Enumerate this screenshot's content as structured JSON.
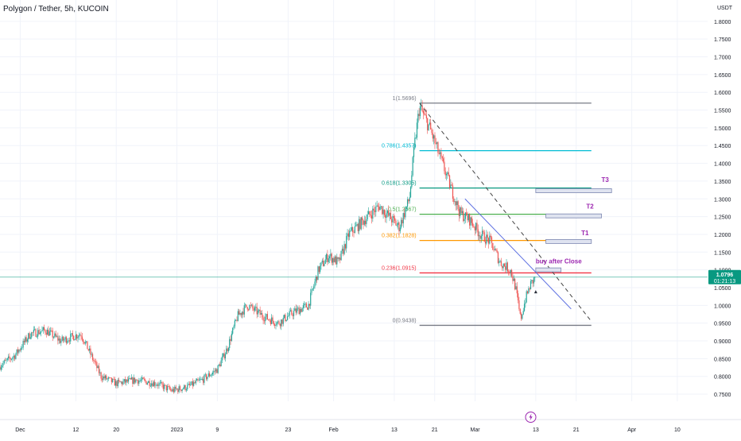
{
  "header": {
    "symbol_title": "Polygon / Tether, 5h, KUCOIN"
  },
  "price_axis": {
    "currency": "USDT",
    "ticks": [
      "0.7500",
      "0.8000",
      "0.8500",
      "0.9000",
      "0.9500",
      "1.0000",
      "1.0500",
      "1.1000",
      "1.1500",
      "1.2000",
      "1.2500",
      "1.3000",
      "1.3500",
      "1.4000",
      "1.4500",
      "1.5000",
      "1.5500",
      "1.6000",
      "1.6500",
      "1.7000",
      "1.7500",
      "1.8000"
    ],
    "current_price_label": "1.0796",
    "countdown_label": "01:21:13",
    "current_price_color": "#089981"
  },
  "time_axis": {
    "labels": [
      {
        "label": "Dec",
        "x": "2022-12-01"
      },
      {
        "label": "12",
        "x": "2022-12-12"
      },
      {
        "label": "20",
        "x": "2022-12-20"
      },
      {
        "label": "2023",
        "x": "2023-01-01"
      },
      {
        "label": "9",
        "x": "2023-01-09"
      },
      {
        "label": "23",
        "x": "2023-01-23"
      },
      {
        "label": "Feb",
        "x": "2023-02-01"
      },
      {
        "label": "13",
        "x": "2023-02-13"
      },
      {
        "label": "21",
        "x": "2023-02-21"
      },
      {
        "label": "Mar",
        "x": "2023-03-01"
      },
      {
        "label": "13",
        "x": "2023-03-13"
      },
      {
        "label": "21",
        "x": "2023-03-21"
      },
      {
        "label": "Apr",
        "x": "2023-04-01"
      },
      {
        "label": "10",
        "x": "2023-04-10"
      }
    ],
    "event_icon": "lightning-icon",
    "event_date": "2023-03-12"
  },
  "chart_data": {
    "type": "candlestick",
    "interval": "5h",
    "ylim": [
      0.73,
      1.86
    ],
    "xlim": [
      "2022-11-27",
      "2023-04-16"
    ],
    "grid": true,
    "up_color": "#26a69a",
    "down_color": "#ef5350",
    "price_path": [
      {
        "x": "2022-11-27",
        "y": 0.83
      },
      {
        "x": "2022-11-30",
        "y": 0.86
      },
      {
        "x": "2022-12-03",
        "y": 0.92
      },
      {
        "x": "2022-12-06",
        "y": 0.93
      },
      {
        "x": "2022-12-09",
        "y": 0.9
      },
      {
        "x": "2022-12-13",
        "y": 0.92
      },
      {
        "x": "2022-12-15",
        "y": 0.86
      },
      {
        "x": "2022-12-17",
        "y": 0.8
      },
      {
        "x": "2022-12-20",
        "y": 0.78
      },
      {
        "x": "2022-12-24",
        "y": 0.79
      },
      {
        "x": "2022-12-28",
        "y": 0.78
      },
      {
        "x": "2022-12-31",
        "y": 0.76
      },
      {
        "x": "2023-01-03",
        "y": 0.77
      },
      {
        "x": "2023-01-06",
        "y": 0.79
      },
      {
        "x": "2023-01-09",
        "y": 0.82
      },
      {
        "x": "2023-01-11",
        "y": 0.88
      },
      {
        "x": "2023-01-13",
        "y": 0.97
      },
      {
        "x": "2023-01-15",
        "y": 1.0
      },
      {
        "x": "2023-01-18",
        "y": 0.97
      },
      {
        "x": "2023-01-21",
        "y": 0.95
      },
      {
        "x": "2023-01-24",
        "y": 0.98
      },
      {
        "x": "2023-01-27",
        "y": 1.0
      },
      {
        "x": "2023-01-29",
        "y": 1.1
      },
      {
        "x": "2023-01-31",
        "y": 1.14
      },
      {
        "x": "2023-02-02",
        "y": 1.12
      },
      {
        "x": "2023-02-04",
        "y": 1.2
      },
      {
        "x": "2023-02-07",
        "y": 1.24
      },
      {
        "x": "2023-02-10",
        "y": 1.28
      },
      {
        "x": "2023-02-12",
        "y": 1.25
      },
      {
        "x": "2023-02-14",
        "y": 1.22
      },
      {
        "x": "2023-02-16",
        "y": 1.3
      },
      {
        "x": "2023-02-17",
        "y": 1.45
      },
      {
        "x": "2023-02-18",
        "y": 1.56
      },
      {
        "x": "2023-02-20",
        "y": 1.5
      },
      {
        "x": "2023-02-22",
        "y": 1.42
      },
      {
        "x": "2023-02-24",
        "y": 1.34
      },
      {
        "x": "2023-02-26",
        "y": 1.26
      },
      {
        "x": "2023-02-28",
        "y": 1.24
      },
      {
        "x": "2023-03-02",
        "y": 1.2
      },
      {
        "x": "2023-03-04",
        "y": 1.18
      },
      {
        "x": "2023-03-06",
        "y": 1.12
      },
      {
        "x": "2023-03-08",
        "y": 1.1
      },
      {
        "x": "2023-03-09",
        "y": 1.05
      },
      {
        "x": "2023-03-10",
        "y": 0.96
      },
      {
        "x": "2023-03-11",
        "y": 1.02
      },
      {
        "x": "2023-03-12",
        "y": 1.06
      },
      {
        "x": "2023-03-13",
        "y": 1.0796
      }
    ],
    "fibonacci": {
      "x_start": "2023-02-18",
      "x_end": "2023-03-24",
      "levels": [
        {
          "label": "1(1.5696)",
          "value": 1.5696,
          "color": "#787b86"
        },
        {
          "label": "0.786(1.4357)",
          "value": 1.4357,
          "color": "#00bcd4"
        },
        {
          "label": "0.618(1.3305)",
          "value": 1.3305,
          "color": "#089981"
        },
        {
          "label": "0.5(1.2567)",
          "value": 1.2567,
          "color": "#4caf50"
        },
        {
          "label": "0.382(1.1828)",
          "value": 1.1828,
          "color": "#ff9800"
        },
        {
          "label": "0.236(1.0915)",
          "value": 1.0915,
          "color": "#f23645"
        },
        {
          "label": "0(0.9438)",
          "value": 0.9438,
          "color": "#787b86"
        }
      ]
    },
    "trendlines": [
      {
        "style": "dashed",
        "color": "#444444",
        "from": {
          "x": "2023-02-18",
          "y": 1.57
        },
        "to": {
          "x": "2023-03-24",
          "y": 0.955
        }
      },
      {
        "style": "solid",
        "color": "#5b6ee1",
        "from": {
          "x": "2023-02-27",
          "y": 1.3
        },
        "to": {
          "x": "2023-03-20",
          "y": 0.99
        }
      }
    ],
    "annotations": [
      {
        "text": "T3",
        "color": "#9c27b0",
        "x": "2023-03-26",
        "y": 1.348,
        "box": {
          "x0": "2023-03-13",
          "x1": "2023-03-28",
          "y": 1.323
        }
      },
      {
        "text": "T2",
        "color": "#9c27b0",
        "x": "2023-03-23",
        "y": 1.273,
        "box": {
          "x0": "2023-03-15",
          "x1": "2023-03-26",
          "y": 1.252
        }
      },
      {
        "text": "T1",
        "color": "#9c27b0",
        "x": "2023-03-22",
        "y": 1.198,
        "box": {
          "x0": "2023-03-15",
          "x1": "2023-03-24",
          "y": 1.18
        }
      },
      {
        "text": "buy after Close",
        "color": "#9c27b0",
        "x": "2023-03-13",
        "y": 1.118,
        "box": {
          "x0": "2023-03-13",
          "x1": "2023-03-18",
          "y": 1.1
        }
      }
    ]
  }
}
